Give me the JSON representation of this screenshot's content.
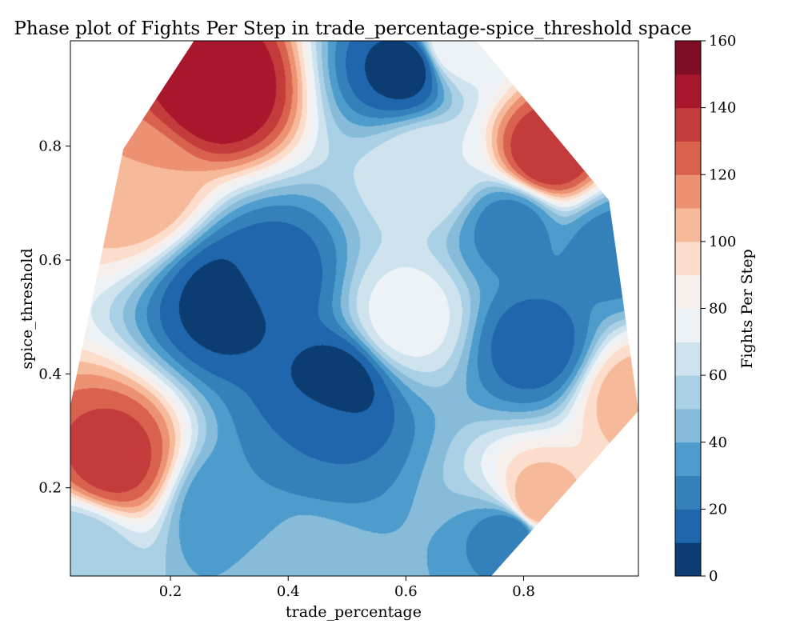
{
  "chart_data": {
    "type": "contour",
    "title": "Phase plot of Fights Per Step in trade_percentage-spice_threshold space",
    "xlabel": "trade_percentage",
    "ylabel": "spice_threshold",
    "colorbar_label": "Fights Per Step",
    "xlim": [
      0.03,
      0.995
    ],
    "ylim": [
      0.045,
      0.985
    ],
    "x_ticks": [
      0.2,
      0.4,
      0.6,
      0.8
    ],
    "x_tick_labels": [
      "0.2",
      "0.4",
      "0.6",
      "0.8"
    ],
    "y_ticks": [
      0.2,
      0.4,
      0.6,
      0.8
    ],
    "y_tick_labels": [
      "0.2",
      "0.4",
      "0.6",
      "0.8"
    ],
    "colorbar": {
      "min": 0,
      "max": 160,
      "levels": [
        0,
        10,
        20,
        30,
        40,
        50,
        60,
        70,
        80,
        90,
        100,
        110,
        120,
        130,
        140,
        150,
        160
      ],
      "colors": [
        "#0b3d73",
        "#2066ac",
        "#3480bb",
        "#4d9ccc",
        "#86bbda",
        "#a9d0e5",
        "#cfe3ef",
        "#ecf2f6",
        "#f7efeb",
        "#fcdcca",
        "#f6b99a",
        "#ec9172",
        "#d9624f",
        "#c43b3c",
        "#a9172c",
        "#800d26"
      ],
      "tick_values": [
        0,
        20,
        40,
        60,
        80,
        100,
        120,
        140,
        160
      ],
      "tick_labels": [
        "0",
        "20",
        "40",
        "60",
        "80",
        "100",
        "120",
        "140",
        "160"
      ]
    },
    "hull": [
      [
        0.24,
        0.985
      ],
      [
        0.72,
        0.985
      ],
      [
        0.945,
        0.705
      ],
      [
        0.995,
        0.335
      ],
      [
        0.745,
        0.045
      ],
      [
        0.03,
        0.045
      ],
      [
        0.03,
        0.345
      ],
      [
        0.12,
        0.795
      ],
      [
        0.24,
        0.985
      ]
    ],
    "peaks": [
      {
        "x": 0.28,
        "y": 0.9,
        "value": 150
      },
      {
        "x": 0.84,
        "y": 0.785,
        "value": 140
      },
      {
        "x": 0.1,
        "y": 0.25,
        "value": 135
      },
      {
        "x": 0.145,
        "y": 0.73,
        "value": 110
      },
      {
        "x": 0.82,
        "y": 0.17,
        "value": 110
      },
      {
        "x": 0.99,
        "y": 0.36,
        "value": 105
      },
      {
        "x": 0.68,
        "y": 0.98,
        "value": 80
      },
      {
        "x": 0.6,
        "y": 0.94,
        "value": 5
      },
      {
        "x": 0.3,
        "y": 0.53,
        "value": 5
      },
      {
        "x": 0.48,
        "y": 0.38,
        "value": 5
      },
      {
        "x": 0.78,
        "y": 0.66,
        "value": 25
      },
      {
        "x": 0.82,
        "y": 0.45,
        "value": 15
      },
      {
        "x": 0.37,
        "y": 0.57,
        "value": 15
      },
      {
        "x": 0.78,
        "y": 0.12,
        "value": 20
      },
      {
        "x": 0.3,
        "y": 0.16,
        "value": 30
      },
      {
        "x": 0.4,
        "y": 0.05,
        "value": 50
      },
      {
        "x": 0.6,
        "y": 0.5,
        "value": 75
      },
      {
        "x": 0.64,
        "y": 0.76,
        "value": 70
      },
      {
        "x": 0.04,
        "y": 0.09,
        "value": 50
      },
      {
        "x": 0.95,
        "y": 0.62,
        "value": 25
      },
      {
        "x": 0.45,
        "y": 0.3,
        "value": 20
      }
    ]
  }
}
